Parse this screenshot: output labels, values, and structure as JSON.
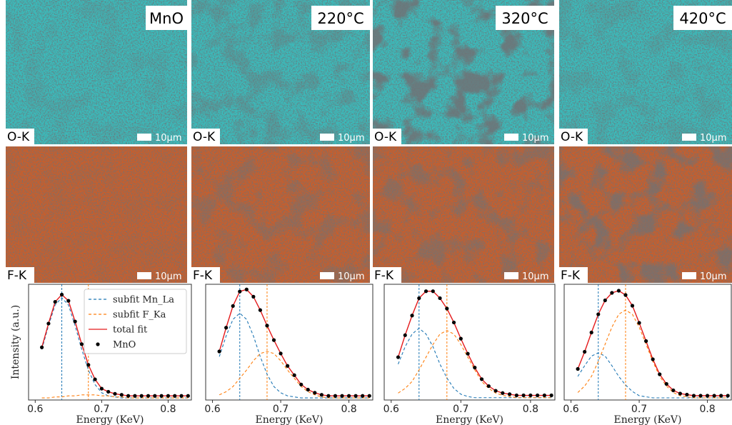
{
  "panels": [
    {
      "title": "MnO",
      "maps": [
        {
          "element": "O-K",
          "scale": "10μm"
        },
        {
          "element": "F-K",
          "scale": "10μm"
        }
      ]
    },
    {
      "title": "220°C",
      "maps": [
        {
          "element": "O-K",
          "scale": "10μm"
        },
        {
          "element": "F-K",
          "scale": "10μm"
        }
      ]
    },
    {
      "title": "320°C",
      "maps": [
        {
          "element": "O-K",
          "scale": "10μm"
        },
        {
          "element": "F-K",
          "scale": "10μm"
        }
      ]
    },
    {
      "title": "420°C",
      "maps": [
        {
          "element": "O-K",
          "scale": "10μm"
        },
        {
          "element": "F-K",
          "scale": "10μm"
        }
      ]
    }
  ],
  "chart_data": [
    {
      "type": "line",
      "x_label": "Energy (KeV)",
      "y_label": "Intensity (a.u.)",
      "legend": "upper right",
      "x": [
        0.61,
        0.62,
        0.63,
        0.64,
        0.65,
        0.66,
        0.67,
        0.68,
        0.69,
        0.7,
        0.71,
        0.72,
        0.73,
        0.74,
        0.75,
        0.76,
        0.77,
        0.78,
        0.79,
        0.8,
        0.81,
        0.82,
        0.83
      ],
      "xlim": [
        0.59,
        0.835
      ],
      "xticks": [
        0.6,
        0.7,
        0.8
      ],
      "ylim": [
        0,
        1.12
      ],
      "vlines": [
        0.64,
        0.68
      ],
      "series": [
        {
          "name": "subfit Mn_La",
          "color": "#1f77b4",
          "style": "dashed",
          "values": [
            0.49,
            0.72,
            0.92,
            0.99,
            0.92,
            0.72,
            0.49,
            0.29,
            0.15,
            0.07,
            0.04,
            0.03,
            0.02,
            0.02,
            0.02,
            0.02,
            0.02,
            0.02,
            0.02,
            0.02,
            0.02,
            0.02,
            0.02
          ]
        },
        {
          "name": "subfit F_Ka",
          "color": "#ff7f0e",
          "style": "dashed",
          "values": [
            0.02,
            0.02,
            0.03,
            0.03,
            0.04,
            0.04,
            0.05,
            0.05,
            0.05,
            0.04,
            0.04,
            0.03,
            0.03,
            0.02,
            0.02,
            0.02,
            0.02,
            0.02,
            0.02,
            0.02,
            0.02,
            0.02,
            0.02
          ]
        },
        {
          "name": "total fit",
          "color": "#e41a1c",
          "style": "solid",
          "values": [
            0.51,
            0.74,
            0.95,
            1.02,
            0.96,
            0.76,
            0.54,
            0.34,
            0.2,
            0.11,
            0.08,
            0.06,
            0.05,
            0.04,
            0.04,
            0.04,
            0.04,
            0.04,
            0.04,
            0.04,
            0.04,
            0.04,
            0.04
          ]
        },
        {
          "name": "MnO",
          "color": "#000000",
          "style": "dots",
          "values": [
            0.51,
            0.74,
            0.95,
            1.02,
            0.96,
            0.76,
            0.54,
            0.34,
            0.2,
            0.11,
            0.08,
            0.06,
            0.05,
            0.04,
            0.04,
            0.04,
            0.04,
            0.04,
            0.04,
            0.04,
            0.04,
            0.04,
            0.04
          ]
        }
      ]
    },
    {
      "type": "line",
      "x_label": "Energy (KeV)",
      "x": [
        0.61,
        0.62,
        0.63,
        0.64,
        0.65,
        0.66,
        0.67,
        0.68,
        0.69,
        0.7,
        0.71,
        0.72,
        0.73,
        0.74,
        0.75,
        0.76,
        0.77,
        0.78,
        0.79,
        0.8,
        0.81,
        0.82,
        0.83
      ],
      "xlim": [
        0.59,
        0.835
      ],
      "xticks": [
        0.6,
        0.7,
        0.8
      ],
      "ylim": [
        0,
        1.12
      ],
      "vlines": [
        0.64,
        0.68
      ],
      "series": [
        {
          "color": "#1f77b4",
          "style": "dashed",
          "values": [
            0.42,
            0.62,
            0.78,
            0.84,
            0.78,
            0.62,
            0.42,
            0.25,
            0.13,
            0.07,
            0.04,
            0.03,
            0.02,
            0.02,
            0.02,
            0.02,
            0.02,
            0.02,
            0.02,
            0.02,
            0.02,
            0.02,
            0.02
          ]
        },
        {
          "color": "#ff7f0e",
          "style": "dashed",
          "values": [
            0.05,
            0.08,
            0.13,
            0.21,
            0.29,
            0.38,
            0.45,
            0.47,
            0.45,
            0.38,
            0.29,
            0.21,
            0.13,
            0.08,
            0.05,
            0.03,
            0.02,
            0.02,
            0.02,
            0.02,
            0.02,
            0.02,
            0.02
          ]
        },
        {
          "color": "#e41a1c",
          "style": "solid",
          "values": [
            0.47,
            0.7,
            0.91,
            1.05,
            1.07,
            1.0,
            0.87,
            0.72,
            0.58,
            0.45,
            0.33,
            0.24,
            0.15,
            0.1,
            0.07,
            0.05,
            0.04,
            0.04,
            0.04,
            0.04,
            0.04,
            0.04,
            0.04
          ]
        },
        {
          "color": "#000000",
          "style": "dots",
          "values": [
            0.47,
            0.7,
            0.91,
            1.05,
            1.07,
            1.0,
            0.87,
            0.72,
            0.58,
            0.45,
            0.33,
            0.24,
            0.15,
            0.1,
            0.07,
            0.05,
            0.04,
            0.04,
            0.04,
            0.04,
            0.04,
            0.04,
            0.04
          ]
        }
      ]
    },
    {
      "type": "line",
      "x_label": "Energy (KeV)",
      "x": [
        0.61,
        0.62,
        0.63,
        0.64,
        0.65,
        0.66,
        0.67,
        0.68,
        0.69,
        0.7,
        0.71,
        0.72,
        0.73,
        0.74,
        0.75,
        0.76,
        0.77,
        0.78,
        0.79,
        0.8,
        0.81,
        0.82,
        0.83
      ],
      "xlim": [
        0.59,
        0.835
      ],
      "xticks": [
        0.6,
        0.7,
        0.8
      ],
      "ylim": [
        0,
        1.0
      ],
      "vlines": [
        0.64,
        0.68
      ],
      "series": [
        {
          "color": "#1f77b4",
          "style": "dashed",
          "values": [
            0.31,
            0.46,
            0.57,
            0.62,
            0.57,
            0.46,
            0.31,
            0.19,
            0.1,
            0.05,
            0.03,
            0.02,
            0.02,
            0.02,
            0.02,
            0.02,
            0.02,
            0.02,
            0.02,
            0.02,
            0.02,
            0.02,
            0.02
          ]
        },
        {
          "color": "#ff7f0e",
          "style": "dashed",
          "values": [
            0.06,
            0.1,
            0.16,
            0.26,
            0.37,
            0.48,
            0.57,
            0.6,
            0.57,
            0.48,
            0.37,
            0.26,
            0.16,
            0.1,
            0.06,
            0.04,
            0.03,
            0.02,
            0.02,
            0.02,
            0.02,
            0.02,
            0.02
          ]
        },
        {
          "color": "#e41a1c",
          "style": "solid",
          "values": [
            0.37,
            0.56,
            0.73,
            0.88,
            0.94,
            0.94,
            0.88,
            0.79,
            0.67,
            0.53,
            0.4,
            0.28,
            0.18,
            0.12,
            0.08,
            0.06,
            0.05,
            0.04,
            0.04,
            0.04,
            0.04,
            0.04,
            0.04
          ]
        },
        {
          "color": "#000000",
          "style": "dots",
          "values": [
            0.37,
            0.56,
            0.73,
            0.88,
            0.94,
            0.94,
            0.88,
            0.79,
            0.67,
            0.53,
            0.4,
            0.28,
            0.18,
            0.12,
            0.08,
            0.06,
            0.05,
            0.04,
            0.04,
            0.04,
            0.04,
            0.04,
            0.04
          ]
        }
      ]
    },
    {
      "type": "line",
      "x_label": "Energy (KeV)",
      "x": [
        0.61,
        0.62,
        0.63,
        0.64,
        0.65,
        0.66,
        0.67,
        0.68,
        0.69,
        0.7,
        0.71,
        0.72,
        0.73,
        0.74,
        0.75,
        0.76,
        0.77,
        0.78,
        0.79,
        0.8,
        0.81,
        0.82,
        0.83
      ],
      "xlim": [
        0.59,
        0.835
      ],
      "xticks": [
        0.6,
        0.7,
        0.8
      ],
      "ylim": [
        0,
        1.08
      ],
      "vlines": [
        0.64,
        0.68
      ],
      "series": [
        {
          "color": "#1f77b4",
          "style": "dashed",
          "values": [
            0.22,
            0.32,
            0.41,
            0.44,
            0.41,
            0.32,
            0.22,
            0.14,
            0.08,
            0.04,
            0.03,
            0.02,
            0.02,
            0.02,
            0.02,
            0.02,
            0.02,
            0.02,
            0.02,
            0.02,
            0.02,
            0.02,
            0.02
          ]
        },
        {
          "color": "#ff7f0e",
          "style": "dashed",
          "values": [
            0.07,
            0.13,
            0.22,
            0.36,
            0.52,
            0.68,
            0.8,
            0.84,
            0.8,
            0.68,
            0.52,
            0.36,
            0.22,
            0.13,
            0.07,
            0.04,
            0.03,
            0.02,
            0.02,
            0.02,
            0.02,
            0.02,
            0.02
          ]
        },
        {
          "color": "#e41a1c",
          "style": "solid",
          "values": [
            0.29,
            0.45,
            0.63,
            0.8,
            0.93,
            1.0,
            1.02,
            0.98,
            0.88,
            0.72,
            0.55,
            0.38,
            0.24,
            0.15,
            0.09,
            0.06,
            0.05,
            0.04,
            0.04,
            0.04,
            0.04,
            0.04,
            0.04
          ]
        },
        {
          "color": "#000000",
          "style": "dots",
          "values": [
            0.29,
            0.45,
            0.63,
            0.8,
            0.93,
            1.0,
            1.02,
            0.98,
            0.88,
            0.72,
            0.55,
            0.38,
            0.24,
            0.15,
            0.09,
            0.06,
            0.05,
            0.04,
            0.04,
            0.04,
            0.04,
            0.04,
            0.04
          ]
        }
      ]
    }
  ]
}
